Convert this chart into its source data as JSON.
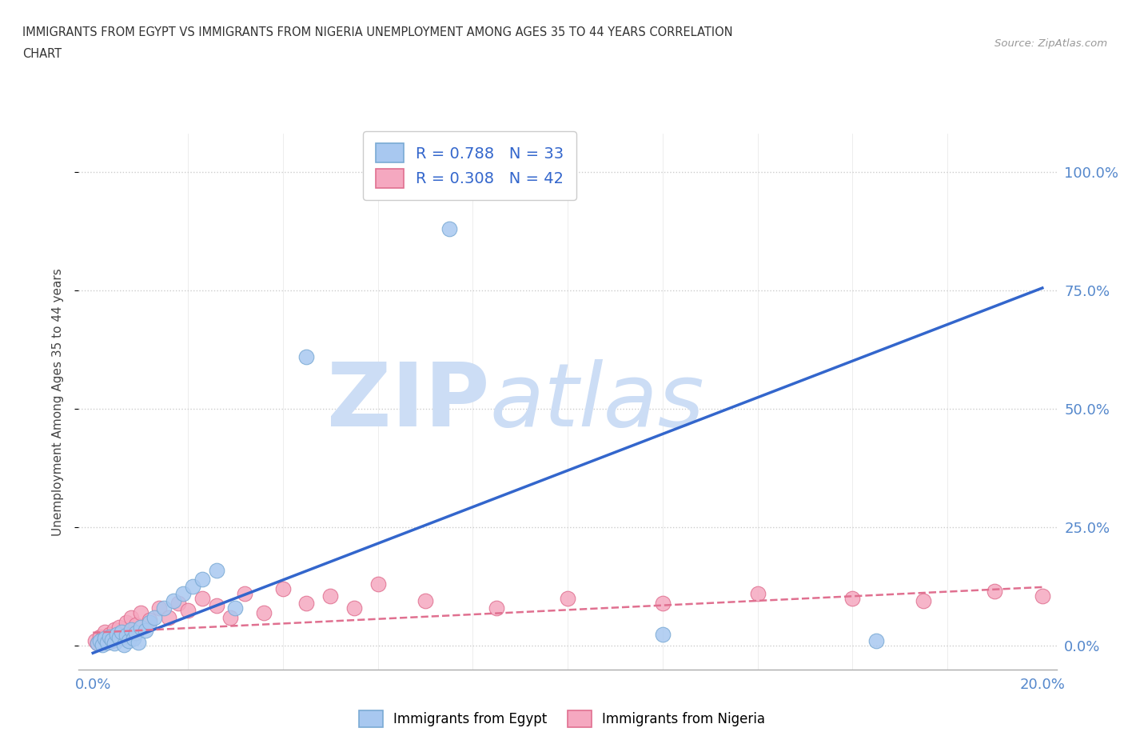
{
  "title_line1": "IMMIGRANTS FROM EGYPT VS IMMIGRANTS FROM NIGERIA UNEMPLOYMENT AMONG AGES 35 TO 44 YEARS CORRELATION",
  "title_line2": "CHART",
  "source": "Source: ZipAtlas.com",
  "ylabel": "Unemployment Among Ages 35 to 44 years",
  "egypt_color": "#a8c8f0",
  "egypt_edge": "#7aaad4",
  "nigeria_color": "#f5a8c0",
  "nigeria_edge": "#e07090",
  "egypt_line_color": "#3366cc",
  "nigeria_line_color": "#e07090",
  "legend_egypt_label": "R = 0.788   N = 33",
  "legend_nigeria_label": "R = 0.308   N = 42",
  "legend_label_color": "#3366cc",
  "watermark_zip": "ZIP",
  "watermark_atlas": "atlas",
  "watermark_color": "#ccddf5",
  "background_color": "#ffffff",
  "grid_color": "#cccccc",
  "axis_label_color": "#5588cc",
  "egypt_line_slope": 3.85,
  "egypt_line_intercept": -1.5,
  "nigeria_line_slope": 0.48,
  "nigeria_line_intercept": 2.8,
  "egypt_scatter_x": [
    0.1,
    0.15,
    0.2,
    0.25,
    0.3,
    0.35,
    0.4,
    0.45,
    0.5,
    0.55,
    0.6,
    0.65,
    0.7,
    0.75,
    0.8,
    0.85,
    0.9,
    0.95,
    1.0,
    1.1,
    1.2,
    1.3,
    1.5,
    1.7,
    1.9,
    2.1,
    2.3,
    2.6,
    3.0,
    4.5,
    7.5,
    12.0,
    16.5
  ],
  "egypt_scatter_y": [
    0.5,
    1.0,
    0.2,
    1.5,
    0.8,
    2.0,
    1.2,
    0.5,
    2.5,
    1.8,
    3.0,
    0.3,
    2.2,
    1.0,
    3.5,
    1.5,
    2.8,
    0.8,
    4.0,
    3.2,
    5.0,
    6.0,
    8.0,
    9.5,
    11.0,
    12.5,
    14.0,
    16.0,
    8.0,
    61.0,
    88.0,
    2.5,
    1.0
  ],
  "nigeria_scatter_x": [
    0.05,
    0.1,
    0.15,
    0.2,
    0.25,
    0.3,
    0.35,
    0.4,
    0.45,
    0.5,
    0.55,
    0.6,
    0.65,
    0.7,
    0.75,
    0.8,
    0.9,
    1.0,
    1.2,
    1.4,
    1.6,
    1.8,
    2.0,
    2.3,
    2.6,
    2.9,
    3.2,
    3.6,
    4.0,
    4.5,
    5.0,
    5.5,
    6.0,
    7.0,
    8.5,
    10.0,
    12.0,
    14.0,
    16.0,
    17.5,
    19.0,
    20.0
  ],
  "nigeria_scatter_y": [
    1.0,
    0.5,
    2.0,
    1.5,
    3.0,
    0.8,
    2.5,
    1.0,
    3.5,
    2.0,
    4.0,
    1.5,
    3.0,
    5.0,
    2.5,
    6.0,
    4.5,
    7.0,
    5.5,
    8.0,
    6.0,
    9.0,
    7.5,
    10.0,
    8.5,
    6.0,
    11.0,
    7.0,
    12.0,
    9.0,
    10.5,
    8.0,
    13.0,
    9.5,
    8.0,
    10.0,
    9.0,
    11.0,
    10.0,
    9.5,
    11.5,
    10.5
  ]
}
